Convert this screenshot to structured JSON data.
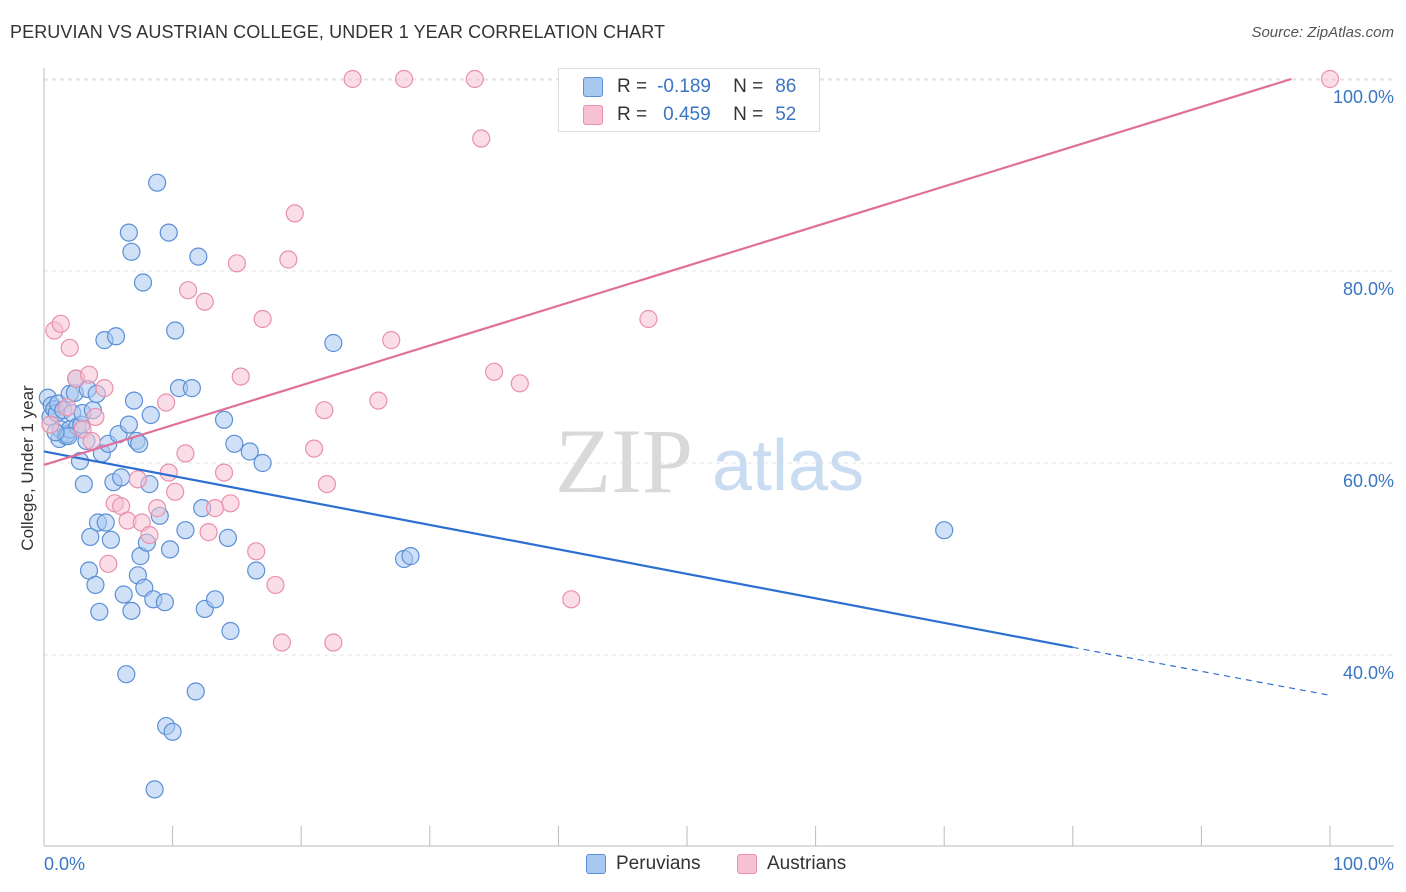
{
  "header": {
    "title": "PERUVIAN VS AUSTRIAN COLLEGE, UNDER 1 YEAR CORRELATION CHART",
    "source": "Source: ZipAtlas.com"
  },
  "watermark": {
    "part1": "ZIP",
    "part2": "atlas"
  },
  "colors": {
    "peruvians_fill": "#a9c8f0",
    "peruvians_stroke": "#5b8fd6",
    "peruvians_line": "#2d6fd1",
    "austrians_fill": "#f6c1d2",
    "austrians_stroke": "#e891ad",
    "austrians_line": "#e0709a",
    "value_text": "#3a75c4",
    "grid": "#e3e3e3"
  },
  "legend": {
    "rows": [
      {
        "r_label": "R =",
        "r_value": "-0.189",
        "n_label": "N =",
        "n_value": "86"
      },
      {
        "r_label": "R =",
        "r_value": "0.459",
        "n_label": "N =",
        "n_value": "52"
      }
    ]
  },
  "bottom_legend": {
    "peruvians": "Peruvians",
    "austrians": "Austrians"
  },
  "chart_data": {
    "type": "scatter",
    "title": "PERUVIAN VS AUSTRIAN COLLEGE, UNDER 1 YEAR CORRELATION CHART",
    "xlabel": "",
    "ylabel": "College, Under 1 year",
    "xlim": [
      0,
      100
    ],
    "ylim": [
      22,
      102
    ],
    "x_tick_labels": [
      "0.0%",
      "100.0%"
    ],
    "y_ticks": [
      40,
      60,
      80,
      100
    ],
    "y_tick_labels": [
      "40.0%",
      "60.0%",
      "80.0%",
      "100.0%"
    ],
    "grid": true,
    "series": [
      {
        "name": "Peruvians",
        "r": -0.189,
        "n": 86,
        "trend": {
          "x": [
            0,
            80
          ],
          "y": [
            61.2,
            40.8
          ],
          "dashed_extension_to": [
            100,
            35.8
          ]
        },
        "points": [
          [
            0.3,
            66.8
          ],
          [
            0.5,
            64.8
          ],
          [
            0.6,
            66.0
          ],
          [
            0.8,
            65.6
          ],
          [
            1.0,
            65.2
          ],
          [
            1.1,
            66.2
          ],
          [
            1.2,
            62.5
          ],
          [
            1.3,
            63.5
          ],
          [
            1.5,
            65.5
          ],
          [
            1.7,
            62.8
          ],
          [
            1.8,
            63.0
          ],
          [
            2.0,
            63.5
          ],
          [
            2.0,
            67.2
          ],
          [
            2.2,
            65.2
          ],
          [
            2.4,
            67.3
          ],
          [
            2.5,
            68.8
          ],
          [
            2.6,
            63.8
          ],
          [
            2.8,
            60.2
          ],
          [
            2.9,
            64.0
          ],
          [
            3.0,
            65.2
          ],
          [
            3.1,
            57.8
          ],
          [
            3.3,
            62.3
          ],
          [
            3.4,
            67.7
          ],
          [
            3.5,
            48.8
          ],
          [
            3.6,
            52.3
          ],
          [
            3.8,
            65.5
          ],
          [
            4.0,
            47.3
          ],
          [
            4.1,
            67.2
          ],
          [
            4.2,
            53.8
          ],
          [
            4.3,
            44.5
          ],
          [
            4.5,
            61.0
          ],
          [
            4.7,
            72.8
          ],
          [
            4.8,
            53.8
          ],
          [
            5.0,
            62.0
          ],
          [
            5.2,
            52.0
          ],
          [
            5.4,
            58.0
          ],
          [
            5.6,
            73.2
          ],
          [
            5.8,
            63.0
          ],
          [
            6.0,
            58.5
          ],
          [
            6.2,
            46.3
          ],
          [
            6.4,
            38.0
          ],
          [
            6.6,
            64.0
          ],
          [
            6.6,
            84.0
          ],
          [
            6.8,
            44.6
          ],
          [
            7.0,
            66.5
          ],
          [
            7.2,
            62.3
          ],
          [
            7.3,
            48.3
          ],
          [
            7.4,
            62.0
          ],
          [
            7.5,
            50.3
          ],
          [
            7.7,
            78.8
          ],
          [
            7.8,
            47.0
          ],
          [
            8.0,
            51.7
          ],
          [
            8.2,
            57.8
          ],
          [
            8.3,
            65.0
          ],
          [
            8.5,
            45.8
          ],
          [
            8.6,
            26.0
          ],
          [
            8.8,
            89.2
          ],
          [
            9.0,
            54.5
          ],
          [
            9.4,
            45.5
          ],
          [
            9.5,
            32.6
          ],
          [
            9.7,
            84.0
          ],
          [
            9.8,
            51.0
          ],
          [
            10.0,
            32.0
          ],
          [
            10.2,
            73.8
          ],
          [
            10.5,
            67.8
          ],
          [
            11.0,
            53.0
          ],
          [
            11.5,
            67.8
          ],
          [
            11.8,
            36.2
          ],
          [
            12.0,
            81.5
          ],
          [
            12.3,
            55.3
          ],
          [
            12.5,
            44.8
          ],
          [
            13.3,
            45.8
          ],
          [
            14.0,
            64.5
          ],
          [
            14.3,
            52.2
          ],
          [
            14.5,
            42.5
          ],
          [
            14.8,
            62.0
          ],
          [
            16.0,
            61.2
          ],
          [
            16.5,
            48.8
          ],
          [
            17.0,
            60.0
          ],
          [
            22.5,
            72.5
          ],
          [
            28.0,
            50.0
          ],
          [
            28.5,
            50.3
          ],
          [
            70.0,
            53.0
          ],
          [
            6.8,
            82.0
          ],
          [
            1.9,
            62.8
          ],
          [
            0.9,
            63.2
          ]
        ]
      },
      {
        "name": "Austrians",
        "r": 0.459,
        "n": 52,
        "trend": {
          "x": [
            0,
            97
          ],
          "y": [
            59.8,
            100.0
          ]
        },
        "points": [
          [
            0.8,
            73.8
          ],
          [
            1.3,
            74.5
          ],
          [
            2.0,
            72.0
          ],
          [
            2.5,
            68.8
          ],
          [
            3.0,
            63.5
          ],
          [
            3.5,
            69.2
          ],
          [
            3.7,
            62.3
          ],
          [
            4.0,
            64.8
          ],
          [
            4.7,
            67.8
          ],
          [
            5.0,
            49.5
          ],
          [
            5.5,
            55.8
          ],
          [
            6.0,
            55.5
          ],
          [
            6.5,
            54.0
          ],
          [
            7.3,
            58.3
          ],
          [
            7.6,
            53.8
          ],
          [
            8.2,
            52.5
          ],
          [
            8.8,
            55.3
          ],
          [
            9.5,
            66.3
          ],
          [
            9.7,
            59.0
          ],
          [
            10.2,
            57.0
          ],
          [
            11.0,
            61.0
          ],
          [
            11.2,
            78.0
          ],
          [
            12.5,
            76.8
          ],
          [
            12.8,
            52.8
          ],
          [
            13.3,
            55.3
          ],
          [
            14.0,
            59.0
          ],
          [
            14.5,
            55.8
          ],
          [
            15.0,
            80.8
          ],
          [
            15.3,
            69.0
          ],
          [
            16.5,
            50.8
          ],
          [
            17.0,
            75.0
          ],
          [
            18.0,
            47.3
          ],
          [
            18.5,
            41.3
          ],
          [
            19.0,
            81.2
          ],
          [
            19.5,
            86.0
          ],
          [
            21.0,
            61.5
          ],
          [
            21.8,
            65.5
          ],
          [
            22.0,
            57.8
          ],
          [
            22.5,
            41.3
          ],
          [
            24.0,
            100.0
          ],
          [
            26.0,
            66.5
          ],
          [
            27.0,
            72.8
          ],
          [
            28.0,
            100.0
          ],
          [
            33.5,
            100.0
          ],
          [
            34.0,
            93.8
          ],
          [
            35.0,
            69.5
          ],
          [
            37.0,
            68.3
          ],
          [
            41.0,
            45.8
          ],
          [
            47.0,
            75.0
          ],
          [
            0.5,
            64.0
          ],
          [
            1.8,
            65.8
          ],
          [
            100.0,
            100.0
          ]
        ]
      }
    ]
  }
}
